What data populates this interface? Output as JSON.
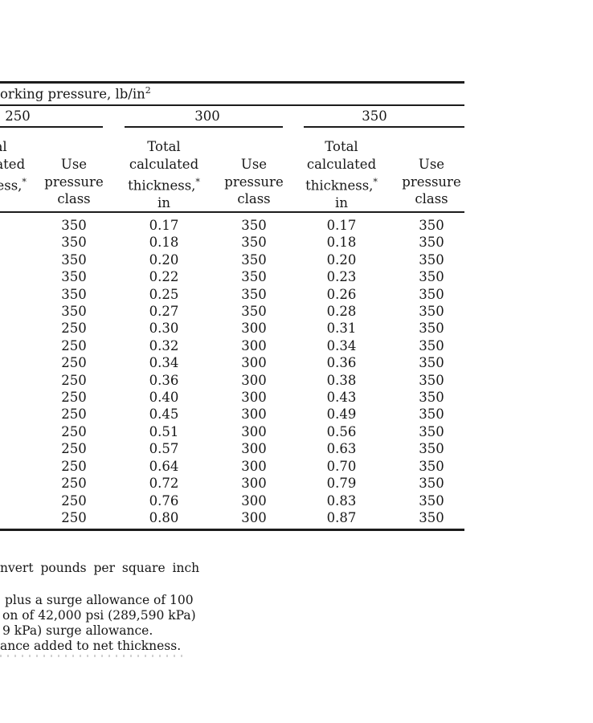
{
  "table": {
    "title_fragment": "orking pressure, lb/in",
    "title_sup": "2",
    "group_labels": [
      "250",
      "300",
      "350"
    ],
    "header": {
      "thickness_lines": [
        "Total",
        "calculated",
        "thickness,",
        "in"
      ],
      "asterisk": "*",
      "use_lines": [
        "Use",
        "pressure",
        "class"
      ]
    },
    "columns": {
      "use250": [
        "350",
        "350",
        "350",
        "350",
        "350",
        "350",
        "250",
        "250",
        "250",
        "250",
        "250",
        "250",
        "250",
        "250",
        "250",
        "250",
        "250",
        "250"
      ],
      "thick300": [
        "0.17",
        "0.18",
        "0.20",
        "0.22",
        "0.25",
        "0.27",
        "0.30",
        "0.32",
        "0.34",
        "0.36",
        "0.40",
        "0.45",
        "0.51",
        "0.57",
        "0.64",
        "0.72",
        "0.76",
        "0.80"
      ],
      "use300": [
        "350",
        "350",
        "350",
        "350",
        "350",
        "350",
        "300",
        "300",
        "300",
        "300",
        "300",
        "300",
        "300",
        "300",
        "300",
        "300",
        "300",
        "300"
      ],
      "thick350": [
        "0.17",
        "0.18",
        "0.20",
        "0.23",
        "0.26",
        "0.28",
        "0.31",
        "0.34",
        "0.36",
        "0.38",
        "0.43",
        "0.49",
        "0.56",
        "0.63",
        "0.70",
        "0.79",
        "0.83",
        "0.87"
      ],
      "use350": [
        "350",
        "350",
        "350",
        "350",
        "350",
        "350",
        "350",
        "350",
        "350",
        "350",
        "350",
        "350",
        "350",
        "350",
        "350",
        "350",
        "350",
        "350"
      ]
    }
  },
  "footnotes": {
    "line1": "nvert pounds per square inch",
    "block": [
      "plus a surge allowance of 100",
      "on of 42,000 psi (289,590 kPa)",
      "9 kPa) surge allowance.",
      "ance added to net thickness."
    ]
  }
}
